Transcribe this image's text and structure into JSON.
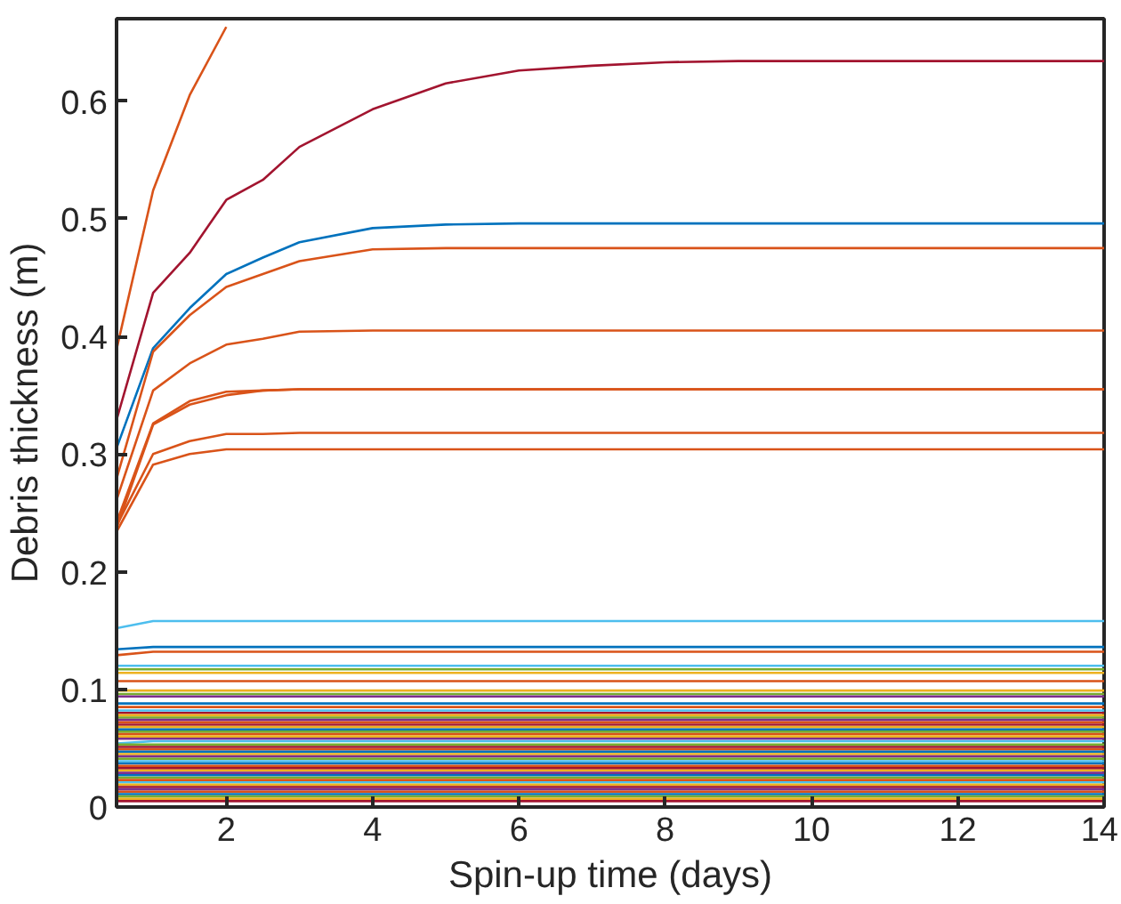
{
  "chart_data": {
    "type": "line",
    "xlabel": "Spin-up time (days)",
    "ylabel": "Debris thickness (m)",
    "x": [
      0.5,
      1,
      1.5,
      2,
      2.5,
      3,
      4,
      5,
      6,
      7,
      8,
      9,
      10,
      11,
      12,
      13,
      14
    ],
    "xlim": [
      0.5,
      14
    ],
    "ylim": [
      0,
      0.67
    ],
    "xticks": [
      2,
      4,
      6,
      8,
      10,
      12,
      14
    ],
    "yticks": [
      0,
      0.1,
      0.2,
      0.3,
      0.4,
      0.5,
      0.6
    ],
    "series": [
      {
        "color": "#d95319",
        "values": [
          0.389,
          0.524,
          0.605,
          0.663,
          null,
          null,
          null,
          null,
          null,
          null,
          null,
          null,
          null,
          null,
          null,
          null,
          null
        ]
      },
      {
        "color": "#a2142f",
        "values": [
          0.329,
          0.437,
          0.471,
          0.516,
          0.533,
          0.561,
          0.593,
          0.615,
          0.626,
          0.63,
          0.633,
          0.634,
          0.634,
          0.634,
          0.634,
          0.634,
          0.634
        ]
      },
      {
        "color": "#0072bd",
        "values": [
          0.305,
          0.39,
          0.424,
          0.453,
          0.467,
          0.48,
          0.492,
          0.495,
          0.496,
          0.496,
          0.496,
          0.496,
          0.496,
          0.496,
          0.496,
          0.496,
          0.496
        ]
      },
      {
        "color": "#d95319",
        "values": [
          0.279,
          0.387,
          0.418,
          0.442,
          0.453,
          0.464,
          0.474,
          0.475,
          0.475,
          0.475,
          0.475,
          0.475,
          0.475,
          0.475,
          0.475,
          0.475,
          0.475
        ]
      },
      {
        "color": "#d95319",
        "values": [
          0.261,
          0.354,
          0.377,
          0.393,
          0.398,
          0.404,
          0.405,
          0.405,
          0.405,
          0.405,
          0.405,
          0.405,
          0.405,
          0.405,
          0.405,
          0.405,
          0.405
        ]
      },
      {
        "color": "#d95319",
        "values": [
          0.242,
          0.326,
          0.345,
          0.353,
          0.354,
          0.355,
          0.355,
          0.355,
          0.355,
          0.355,
          0.355,
          0.355,
          0.355,
          0.355,
          0.355,
          0.355,
          0.355
        ]
      },
      {
        "color": "#d95319",
        "values": [
          0.237,
          0.325,
          0.342,
          0.35,
          0.354,
          0.355,
          0.355,
          0.355,
          0.355,
          0.355,
          0.355,
          0.355,
          0.355,
          0.355,
          0.355,
          0.355,
          0.355
        ]
      },
      {
        "color": "#d95319",
        "values": [
          0.239,
          0.3,
          0.311,
          0.317,
          0.317,
          0.318,
          0.318,
          0.318,
          0.318,
          0.318,
          0.318,
          0.318,
          0.318,
          0.318,
          0.318,
          0.318,
          0.318
        ]
      },
      {
        "color": "#d95319",
        "values": [
          0.234,
          0.291,
          0.3,
          0.304,
          0.304,
          0.304,
          0.304,
          0.304,
          0.304,
          0.304,
          0.304,
          0.304,
          0.304,
          0.304,
          0.304,
          0.304,
          0.304
        ]
      },
      {
        "color": "#4dbeee",
        "x": [
          0.5,
          1,
          14
        ],
        "values": [
          0.152,
          0.158,
          0.158
        ]
      },
      {
        "color": "#0072bd",
        "x": [
          0.5,
          1,
          14
        ],
        "values": [
          0.134,
          0.136,
          0.136
        ]
      },
      {
        "color": "#d95319",
        "x": [
          0.5,
          1,
          14
        ],
        "values": [
          0.129,
          0.132,
          0.132
        ]
      },
      {
        "color": "#4dbeee",
        "x": [
          0.5,
          14
        ],
        "values": [
          0.12,
          0.12
        ]
      },
      {
        "color": "#77ac30",
        "x": [
          0.5,
          14
        ],
        "values": [
          0.117,
          0.117
        ]
      },
      {
        "color": "#edb120",
        "x": [
          0.5,
          14
        ],
        "values": [
          0.114,
          0.114
        ]
      },
      {
        "color": "#d95319",
        "x": [
          0.5,
          14
        ],
        "values": [
          0.107,
          0.107
        ]
      },
      {
        "color": "#edb120",
        "x": [
          0.5,
          14
        ],
        "values": [
          0.099,
          0.099
        ]
      },
      {
        "color": "#77ac30",
        "x": [
          0.5,
          14
        ],
        "values": [
          0.096,
          0.096
        ]
      },
      {
        "color": "#7e2f8e",
        "x": [
          0.5,
          14
        ],
        "values": [
          0.094,
          0.094
        ]
      },
      {
        "color": "#0072bd",
        "x": [
          0.5,
          14
        ],
        "values": [
          0.088,
          0.088
        ]
      },
      {
        "color": "#d95319",
        "x": [
          0.5,
          14
        ],
        "values": [
          0.085,
          0.085
        ]
      },
      {
        "color": "#4dbeee",
        "x": [
          0.5,
          14
        ],
        "values": [
          0.082,
          0.082
        ]
      },
      {
        "color": "#a2142f",
        "x": [
          0.5,
          14
        ],
        "values": [
          0.08,
          0.08
        ]
      },
      {
        "color": "#edb120",
        "x": [
          0.5,
          14
        ],
        "values": [
          0.078,
          0.078
        ]
      },
      {
        "color": "#77ac30",
        "x": [
          0.5,
          14
        ],
        "values": [
          0.076,
          0.076
        ]
      },
      {
        "color": "#7e2f8e",
        "x": [
          0.5,
          14
        ],
        "values": [
          0.074,
          0.074
        ]
      },
      {
        "color": "#d95319",
        "x": [
          0.5,
          14
        ],
        "values": [
          0.072,
          0.072
        ]
      },
      {
        "color": "#a2142f",
        "x": [
          0.5,
          14
        ],
        "values": [
          0.07,
          0.07
        ]
      },
      {
        "color": "#edb120",
        "x": [
          0.5,
          14
        ],
        "values": [
          0.068,
          0.068
        ]
      },
      {
        "color": "#0072bd",
        "x": [
          0.5,
          14
        ],
        "values": [
          0.066,
          0.066
        ]
      },
      {
        "color": "#77ac30",
        "x": [
          0.5,
          14
        ],
        "values": [
          0.064,
          0.064
        ]
      },
      {
        "color": "#d95319",
        "x": [
          0.5,
          14
        ],
        "values": [
          0.062,
          0.062
        ]
      },
      {
        "color": "#edb120",
        "x": [
          0.5,
          14
        ],
        "values": [
          0.06,
          0.06
        ]
      },
      {
        "color": "#7e2f8e",
        "x": [
          0.5,
          14
        ],
        "values": [
          0.058,
          0.058
        ]
      },
      {
        "color": "#4dbeee",
        "x": [
          0.5,
          1,
          14
        ],
        "values": [
          0.054,
          0.056,
          0.056
        ]
      },
      {
        "color": "#77ac30",
        "x": [
          0.5,
          14
        ],
        "values": [
          0.053,
          0.053
        ]
      },
      {
        "color": "#a2142f",
        "x": [
          0.5,
          14
        ],
        "values": [
          0.051,
          0.051
        ]
      },
      {
        "color": "#d95319",
        "x": [
          0.5,
          14
        ],
        "values": [
          0.049,
          0.049
        ]
      },
      {
        "color": "#0072bd",
        "x": [
          0.5,
          14
        ],
        "values": [
          0.047,
          0.047
        ]
      },
      {
        "color": "#edb120",
        "x": [
          0.5,
          14
        ],
        "values": [
          0.045,
          0.045
        ]
      },
      {
        "color": "#7e2f8e",
        "x": [
          0.5,
          14
        ],
        "values": [
          0.043,
          0.043
        ]
      },
      {
        "color": "#77ac30",
        "x": [
          0.5,
          14
        ],
        "values": [
          0.041,
          0.041
        ]
      },
      {
        "color": "#4dbeee",
        "x": [
          0.5,
          14
        ],
        "values": [
          0.039,
          0.039
        ]
      },
      {
        "color": "#0072bd",
        "x": [
          0.5,
          14
        ],
        "values": [
          0.037,
          0.037
        ]
      },
      {
        "color": "#d95319",
        "x": [
          0.5,
          14
        ],
        "values": [
          0.035,
          0.035
        ]
      },
      {
        "color": "#a2142f",
        "x": [
          0.5,
          14
        ],
        "values": [
          0.033,
          0.033
        ]
      },
      {
        "color": "#edb120",
        "x": [
          0.5,
          14
        ],
        "values": [
          0.031,
          0.031
        ]
      },
      {
        "color": "#7e2f8e",
        "x": [
          0.5,
          14
        ],
        "values": [
          0.029,
          0.029
        ]
      },
      {
        "color": "#0072bd",
        "x": [
          0.5,
          14
        ],
        "values": [
          0.027,
          0.027
        ]
      },
      {
        "color": "#77ac30",
        "x": [
          0.5,
          14
        ],
        "values": [
          0.025,
          0.025
        ]
      },
      {
        "color": "#d95319",
        "x": [
          0.5,
          14
        ],
        "values": [
          0.023,
          0.023
        ]
      },
      {
        "color": "#4dbeee",
        "x": [
          0.5,
          14
        ],
        "values": [
          0.021,
          0.021
        ]
      },
      {
        "color": "#edb120",
        "x": [
          0.5,
          14
        ],
        "values": [
          0.019,
          0.019
        ]
      },
      {
        "color": "#a2142f",
        "x": [
          0.5,
          14
        ],
        "values": [
          0.017,
          0.017
        ]
      },
      {
        "color": "#7e2f8e",
        "x": [
          0.5,
          14
        ],
        "values": [
          0.015,
          0.015
        ]
      },
      {
        "color": "#d95319",
        "x": [
          0.5,
          14
        ],
        "values": [
          0.013,
          0.013
        ]
      },
      {
        "color": "#0072bd",
        "x": [
          0.5,
          14
        ],
        "values": [
          0.011,
          0.011
        ]
      },
      {
        "color": "#77ac30",
        "x": [
          0.5,
          14
        ],
        "values": [
          0.009,
          0.009
        ]
      },
      {
        "color": "#edb120",
        "x": [
          0.5,
          14
        ],
        "values": [
          0.007,
          0.007
        ]
      },
      {
        "color": "#a2142f",
        "x": [
          0.5,
          14
        ],
        "values": [
          0.005,
          0.005
        ]
      }
    ]
  }
}
